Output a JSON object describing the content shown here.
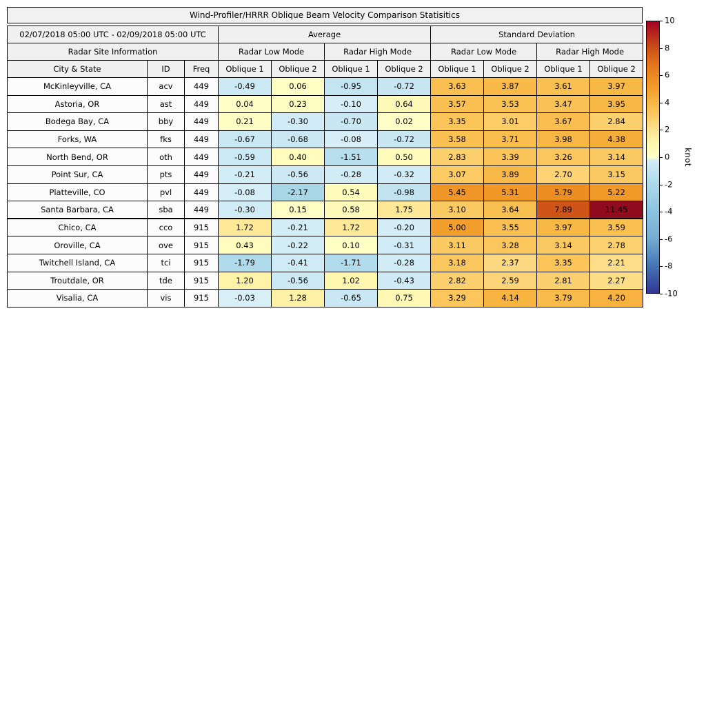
{
  "title": "Wind-Profiler/HRRR Oblique Beam Velocity Comparison Statisitics",
  "header": {
    "date_range": "02/07/2018 05:00 UTC - 02/09/2018 05:00 UTC",
    "group_average": "Average",
    "group_std": "Standard Deviation",
    "site_info": "Radar Site Information",
    "low_mode": "Radar Low Mode",
    "high_mode": "Radar High Mode",
    "col_city": "City & State",
    "col_id": "ID",
    "col_freq": "Freq",
    "col_oblique1": "Oblique 1",
    "col_oblique2": "Oblique 2"
  },
  "colorbar": {
    "label": "knot",
    "min": -10,
    "max": 10,
    "ticks": [
      10,
      8,
      6,
      4,
      2,
      0,
      -2,
      -4,
      -6,
      -8,
      -10
    ]
  },
  "colors": {
    "header_bg": "#f0f0f0",
    "meta_cell_bg": "#fbfbfb",
    "border": "#000000"
  },
  "colormap": {
    "stops": [
      {
        "v": -10,
        "c": "#313695"
      },
      {
        "v": -8,
        "c": "#4575b4"
      },
      {
        "v": -6,
        "c": "#74add1"
      },
      {
        "v": -4,
        "c": "#8cc3e1"
      },
      {
        "v": -2,
        "c": "#abd9e9"
      },
      {
        "v": -0.01,
        "c": "#d8eff8"
      },
      {
        "v": 0,
        "c": "#ffffc8"
      },
      {
        "v": 1,
        "c": "#fff7ae"
      },
      {
        "v": 2,
        "c": "#fee391"
      },
      {
        "v": 3,
        "c": "#fccc66"
      },
      {
        "v": 4,
        "c": "#f8b743"
      },
      {
        "v": 5,
        "c": "#f39f2d"
      },
      {
        "v": 6,
        "c": "#ec8920"
      },
      {
        "v": 7,
        "c": "#e0701c"
      },
      {
        "v": 8,
        "c": "#cd5016"
      },
      {
        "v": 10,
        "c": "#a50026"
      },
      {
        "v": 12,
        "c": "#870f19"
      }
    ]
  },
  "chart_data": {
    "type": "heatmap",
    "title": "Wind-Profiler/HRRR Oblique Beam Velocity Comparison Statisitics",
    "unit": "knot",
    "vmin": -10,
    "vmax": 10,
    "column_groups": [
      "Average",
      "Standard Deviation"
    ],
    "value_columns": [
      "Average / Radar Low Mode / Oblique 1",
      "Average / Radar Low Mode / Oblique 2",
      "Average / Radar High Mode / Oblique 1",
      "Average / Radar High Mode / Oblique 2",
      "Standard Deviation / Radar Low Mode / Oblique 1",
      "Standard Deviation / Radar Low Mode / Oblique 2",
      "Standard Deviation / Radar High Mode / Oblique 1",
      "Standard Deviation / Radar High Mode / Oblique 2"
    ],
    "rows": [
      {
        "city": "McKinleyville, CA",
        "id": "acv",
        "freq": 449,
        "values": [
          -0.49,
          0.06,
          -0.95,
          -0.72,
          3.63,
          3.87,
          3.61,
          3.97
        ]
      },
      {
        "city": "Astoria, OR",
        "id": "ast",
        "freq": 449,
        "values": [
          0.04,
          0.23,
          -0.1,
          0.64,
          3.57,
          3.53,
          3.47,
          3.95
        ]
      },
      {
        "city": "Bodega Bay, CA",
        "id": "bby",
        "freq": 449,
        "values": [
          0.21,
          -0.3,
          -0.7,
          0.02,
          3.35,
          3.01,
          3.67,
          2.84
        ]
      },
      {
        "city": "Forks, WA",
        "id": "fks",
        "freq": 449,
        "values": [
          -0.67,
          -0.68,
          -0.08,
          -0.72,
          3.58,
          3.71,
          3.98,
          4.38
        ]
      },
      {
        "city": "North Bend, OR",
        "id": "oth",
        "freq": 449,
        "values": [
          -0.59,
          0.4,
          -1.51,
          0.5,
          2.83,
          3.39,
          3.26,
          3.14
        ]
      },
      {
        "city": "Point Sur, CA",
        "id": "pts",
        "freq": 449,
        "values": [
          -0.21,
          -0.56,
          -0.28,
          -0.32,
          3.07,
          3.89,
          2.7,
          3.15
        ]
      },
      {
        "city": "Platteville, CO",
        "id": "pvl",
        "freq": 449,
        "values": [
          -0.08,
          -2.17,
          0.54,
          -0.98,
          5.45,
          5.31,
          5.79,
          5.22
        ]
      },
      {
        "city": "Santa Barbara, CA",
        "id": "sba",
        "freq": 449,
        "values": [
          -0.3,
          0.15,
          0.58,
          1.75,
          3.1,
          3.64,
          7.89,
          11.45
        ]
      },
      {
        "city": "Chico, CA",
        "id": "cco",
        "freq": 915,
        "values": [
          1.72,
          -0.21,
          1.72,
          -0.2,
          5.0,
          3.55,
          3.97,
          3.59
        ]
      },
      {
        "city": "Oroville, CA",
        "id": "ove",
        "freq": 915,
        "values": [
          0.43,
          -0.22,
          0.1,
          -0.31,
          3.11,
          3.28,
          3.14,
          2.78
        ]
      },
      {
        "city": "Twitchell Island, CA",
        "id": "tci",
        "freq": 915,
        "values": [
          -1.79,
          -0.41,
          -1.71,
          -0.28,
          3.18,
          2.37,
          3.35,
          2.21
        ]
      },
      {
        "city": "Troutdale, OR",
        "id": "tde",
        "freq": 915,
        "values": [
          1.2,
          -0.56,
          1.02,
          -0.43,
          2.82,
          2.59,
          2.81,
          2.27
        ]
      },
      {
        "city": "Visalia, CA",
        "id": "vis",
        "freq": 915,
        "values": [
          -0.03,
          1.28,
          -0.65,
          0.75,
          3.29,
          4.14,
          3.79,
          4.2
        ]
      }
    ]
  }
}
